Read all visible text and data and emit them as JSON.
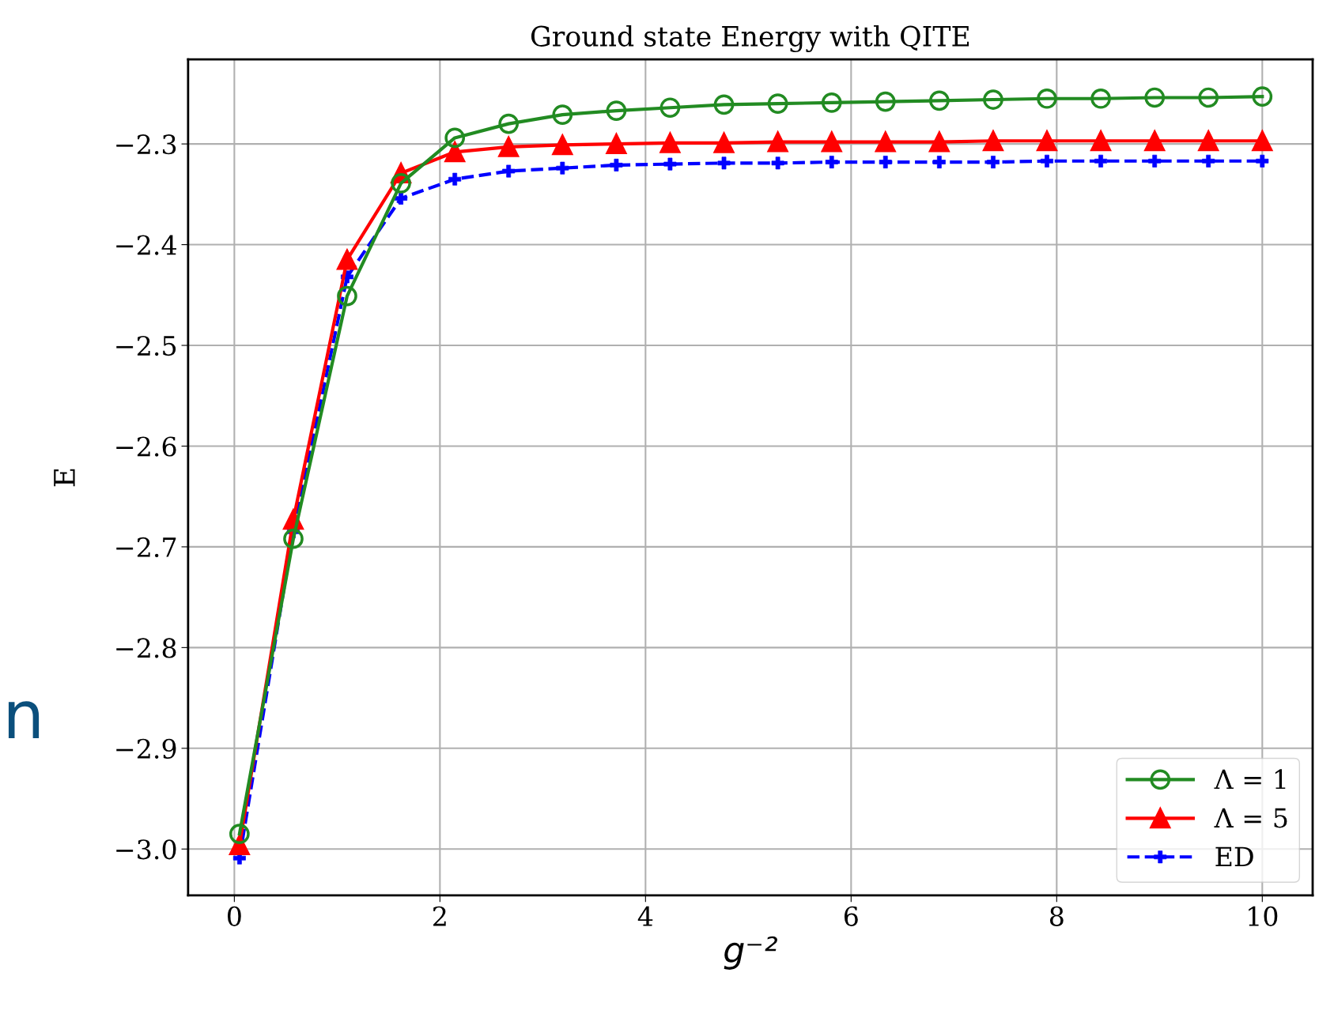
{
  "chart_data": {
    "type": "line",
    "title": "Ground state Energy with QITE",
    "xlabel": "g⁻²",
    "ylabel": "E",
    "x": [
      0.05,
      0.574,
      1.097,
      1.621,
      2.145,
      2.668,
      3.192,
      3.716,
      4.239,
      4.763,
      5.287,
      5.811,
      6.334,
      6.858,
      7.382,
      7.905,
      8.429,
      8.953,
      9.476,
      10
    ],
    "series": [
      {
        "name": "Λ = 1",
        "color": "#228b22",
        "marker": "circle",
        "line_style": "solid",
        "values": [
          -2.985,
          -2.692,
          -2.451,
          -2.339,
          -2.294,
          -2.28,
          -2.271,
          -2.267,
          -2.264,
          -2.261,
          -2.26,
          -2.259,
          -2.258,
          -2.257,
          -2.256,
          -2.255,
          -2.255,
          -2.254,
          -2.254,
          -2.253
        ]
      },
      {
        "name": "Λ = 5",
        "color": "#ff0000",
        "marker": "triangle",
        "line_style": "solid",
        "values": [
          -2.996,
          -2.673,
          -2.415,
          -2.329,
          -2.308,
          -2.303,
          -2.301,
          -2.3,
          -2.299,
          -2.299,
          -2.298,
          -2.298,
          -2.298,
          -2.298,
          -2.297,
          -2.297,
          -2.297,
          -2.297,
          -2.297,
          -2.297
        ]
      },
      {
        "name": "ED",
        "color": "#0000ff",
        "marker": "cross",
        "line_style": "dashed",
        "values": [
          -3.009,
          -2.685,
          -2.432,
          -2.354,
          -2.335,
          -2.327,
          -2.324,
          -2.321,
          -2.32,
          -2.319,
          -2.319,
          -2.318,
          -2.318,
          -2.318,
          -2.318,
          -2.317,
          -2.317,
          -2.317,
          -2.317,
          -2.317
        ]
      }
    ],
    "xlim": [
      -0.45,
      10.49
    ],
    "ylim": [
      -3.046,
      -2.216
    ],
    "xticks": [
      0,
      2,
      4,
      6,
      8,
      10
    ],
    "yticks": [
      {
        "value": -3.0,
        "label": "−3.0"
      },
      {
        "value": -2.9,
        "label": "−2.9"
      },
      {
        "value": -2.8,
        "label": "−2.8"
      },
      {
        "value": -2.7,
        "label": "−2.7"
      },
      {
        "value": -2.6,
        "label": "−2.6"
      },
      {
        "value": -2.5,
        "label": "−2.5"
      },
      {
        "value": -2.4,
        "label": "−2.4"
      },
      {
        "value": -2.3,
        "label": "−2.3"
      }
    ],
    "grid": true,
    "legend": "bottom right",
    "annotations": [
      "n"
    ]
  }
}
